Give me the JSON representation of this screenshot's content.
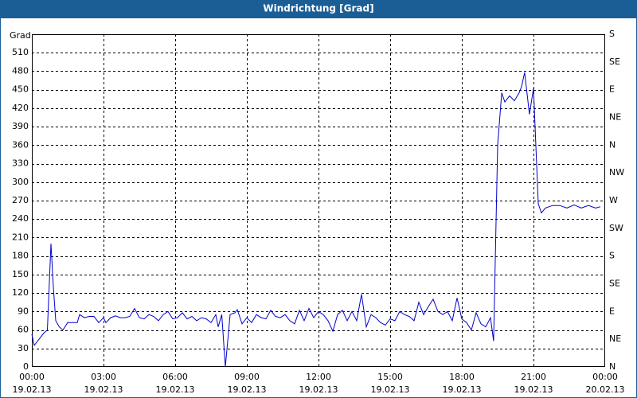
{
  "chart_data": {
    "type": "line",
    "title": "Windrichtung [Grad]",
    "y_label": "Grad",
    "xlim": [
      0,
      24
    ],
    "xticks": [
      {
        "value": 0,
        "label": "00:00\n19.02.13"
      },
      {
        "value": 3,
        "label": "03:00\n19.02.13"
      },
      {
        "value": 6,
        "label": "06:00\n19.02.13"
      },
      {
        "value": 9,
        "label": "09:00\n19.02.13"
      },
      {
        "value": 12,
        "label": "12:00\n19.02.13"
      },
      {
        "value": 15,
        "label": "15:00\n19.02.13"
      },
      {
        "value": 18,
        "label": "18:00\n19.02.13"
      },
      {
        "value": 21,
        "label": "21:00\n19.02.13"
      },
      {
        "value": 24,
        "label": "00:00\n20.02.13"
      }
    ],
    "ylim": [
      0,
      540
    ],
    "yticks": [
      0,
      30,
      60,
      90,
      120,
      150,
      180,
      210,
      240,
      270,
      300,
      330,
      360,
      390,
      420,
      450,
      480,
      510
    ],
    "y2lim": [
      0,
      540
    ],
    "y2ticks": [
      {
        "value": 0,
        "label": "N"
      },
      {
        "value": 45,
        "label": "NE"
      },
      {
        "value": 90,
        "label": "E"
      },
      {
        "value": 135,
        "label": "SE"
      },
      {
        "value": 180,
        "label": "S"
      },
      {
        "value": 225,
        "label": "SW"
      },
      {
        "value": 270,
        "label": "W"
      },
      {
        "value": 315,
        "label": "NW"
      },
      {
        "value": 360,
        "label": "N"
      },
      {
        "value": 405,
        "label": "NE"
      },
      {
        "value": 450,
        "label": "E"
      },
      {
        "value": 495,
        "label": "SE"
      },
      {
        "value": 540,
        "label": "S"
      }
    ],
    "grid": true,
    "series": [
      {
        "color": "#0000cc",
        "x": [
          0,
          0.1,
          0.3,
          0.5,
          0.65,
          0.8,
          0.9,
          1.0,
          1.15,
          1.3,
          1.5,
          1.7,
          1.9,
          2.0,
          2.2,
          2.4,
          2.6,
          2.8,
          3.0,
          3.1,
          3.3,
          3.5,
          3.7,
          3.9,
          4.1,
          4.3,
          4.5,
          4.7,
          4.9,
          5.1,
          5.3,
          5.5,
          5.7,
          5.9,
          6.1,
          6.3,
          6.5,
          6.7,
          6.9,
          7.1,
          7.3,
          7.5,
          7.7,
          7.8,
          7.95,
          8.1,
          8.3,
          8.5,
          8.6,
          8.8,
          9.0,
          9.2,
          9.4,
          9.6,
          9.8,
          10.0,
          10.2,
          10.4,
          10.6,
          10.8,
          11.0,
          11.2,
          11.4,
          11.6,
          11.8,
          12.0,
          12.2,
          12.4,
          12.6,
          12.8,
          13.0,
          13.2,
          13.4,
          13.6,
          13.8,
          14.0,
          14.2,
          14.4,
          14.6,
          14.8,
          15.0,
          15.2,
          15.4,
          15.6,
          15.8,
          16.0,
          16.2,
          16.4,
          16.6,
          16.8,
          17.0,
          17.2,
          17.4,
          17.6,
          17.8,
          18.0,
          18.2,
          18.4,
          18.6,
          18.8,
          19.0,
          19.2,
          19.33,
          19.5,
          19.67,
          19.8,
          20.0,
          20.2,
          20.4,
          20.5,
          20.63,
          20.83,
          21.0,
          21.2,
          21.33,
          21.5,
          21.8,
          22.1,
          22.4,
          22.7,
          23.0,
          23.3,
          23.6,
          23.8
        ],
        "values": [
          53,
          35,
          45,
          55,
          60,
          200,
          130,
          75,
          65,
          60,
          72,
          72,
          72,
          85,
          80,
          82,
          82,
          72,
          80,
          72,
          80,
          83,
          80,
          80,
          82,
          95,
          80,
          78,
          85,
          82,
          75,
          85,
          90,
          78,
          80,
          88,
          78,
          82,
          75,
          80,
          78,
          72,
          85,
          65,
          85,
          0,
          85,
          88,
          93,
          70,
          80,
          72,
          85,
          80,
          78,
          92,
          82,
          80,
          85,
          75,
          70,
          92,
          75,
          95,
          80,
          90,
          85,
          75,
          58,
          85,
          92,
          75,
          90,
          75,
          118,
          65,
          85,
          80,
          72,
          68,
          78,
          75,
          90,
          85,
          82,
          75,
          105,
          85,
          98,
          110,
          90,
          85,
          90,
          75,
          112,
          78,
          72,
          60,
          88,
          70,
          65,
          80,
          42,
          360,
          445,
          430,
          440,
          432,
          445,
          455,
          478,
          410,
          452,
          265,
          250,
          258,
          262,
          262,
          258,
          263,
          258,
          262,
          258,
          260
        ]
      }
    ]
  }
}
